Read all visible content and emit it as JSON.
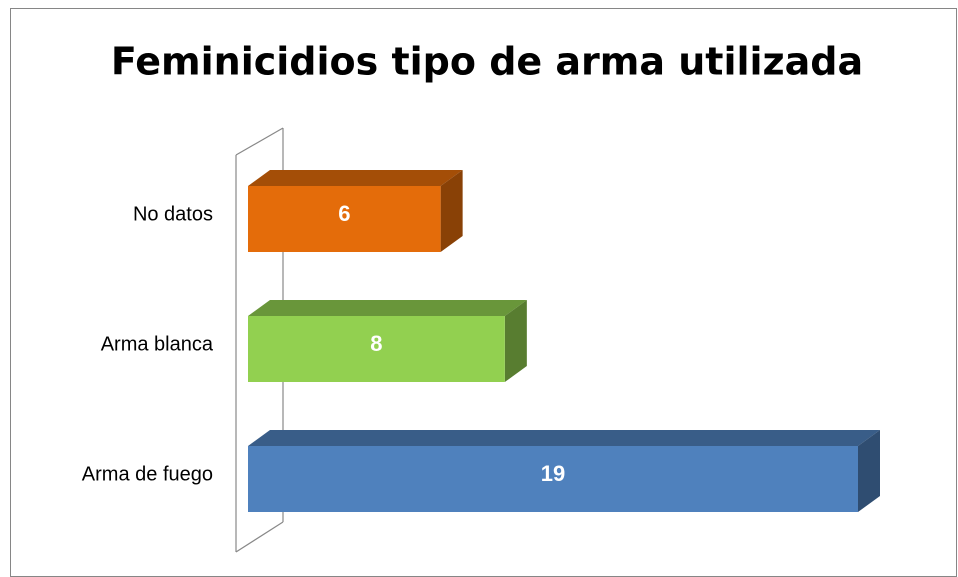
{
  "chart_data": {
    "type": "bar",
    "orientation": "horizontal",
    "title": "Feminicidios tipo de arma utilizada",
    "categories": [
      "No datos",
      "Arma blanca",
      "Arma de fuego"
    ],
    "values": [
      6,
      8,
      19
    ],
    "colors": [
      "#e46c0a",
      "#92d050",
      "#4f81bd"
    ]
  }
}
